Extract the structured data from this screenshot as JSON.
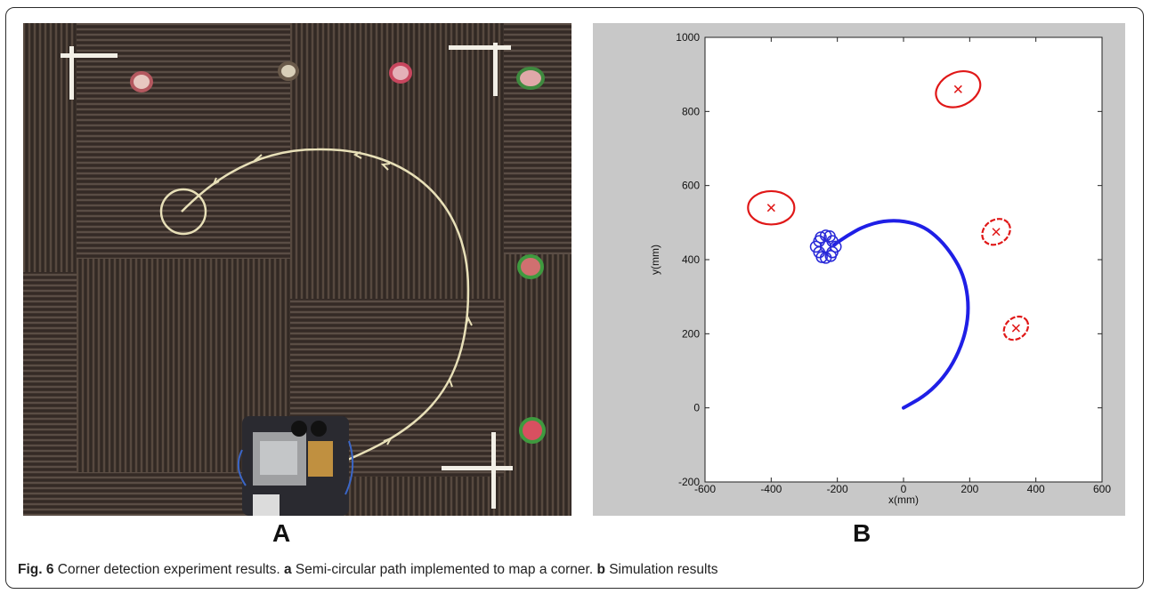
{
  "panels": {
    "a_label": "A",
    "b_label": "B"
  },
  "photo": {
    "description_icon": "robot-photo-icon"
  },
  "caption": {
    "fig": "Fig. 6",
    "text1": " Corner detection experiment results. ",
    "a": "a",
    "text2": " Semi-circular path implemented to map a corner. ",
    "b": "b",
    "text3": " Simulation results"
  },
  "chart_data": {
    "type": "scatter",
    "xlabel": "x(mm)",
    "ylabel": "y(mm)",
    "xlim": [
      -600,
      600
    ],
    "ylim": [
      -200,
      1000
    ],
    "xticks": [
      "-600",
      "-400",
      "-200",
      "0",
      "200",
      "400",
      "600"
    ],
    "yticks": [
      "-200",
      "0",
      "200",
      "400",
      "600",
      "800",
      "1000"
    ],
    "path": {
      "color": "#1f1fe6",
      "points": [
        [
          0,
          0
        ],
        [
          60,
          30
        ],
        [
          110,
          70
        ],
        [
          150,
          120
        ],
        [
          180,
          180
        ],
        [
          195,
          240
        ],
        [
          195,
          300
        ],
        [
          180,
          360
        ],
        [
          150,
          410
        ],
        [
          110,
          455
        ],
        [
          60,
          490
        ],
        [
          0,
          505
        ],
        [
          -60,
          505
        ],
        [
          -120,
          490
        ],
        [
          -170,
          465
        ],
        [
          -210,
          440
        ]
      ]
    },
    "pose_cluster": {
      "color": "#2a2ad8",
      "center": [
        -235,
        435
      ]
    },
    "landmarks": {
      "color": "#e01818",
      "points": [
        {
          "x": 165,
          "y": 860,
          "rx": 70,
          "ry": 45,
          "rot": 25,
          "style": "solid"
        },
        {
          "x": -400,
          "y": 540,
          "rx": 70,
          "ry": 45,
          "rot": 0,
          "style": "solid"
        },
        {
          "x": 280,
          "y": 475,
          "rx": 45,
          "ry": 32,
          "rot": 35,
          "style": "dashed"
        },
        {
          "x": 340,
          "y": 215,
          "rx": 40,
          "ry": 28,
          "rot": 40,
          "style": "dashed"
        }
      ]
    }
  }
}
